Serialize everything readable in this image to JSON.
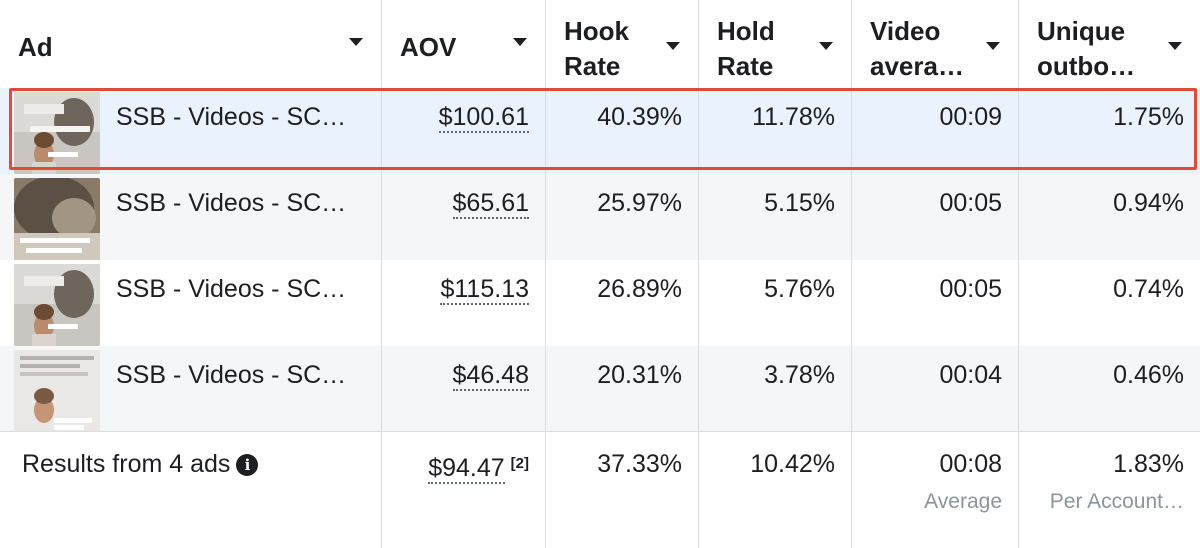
{
  "columns": {
    "ad": "Ad",
    "aov": "AOV",
    "hook_rate": "Hook Rate",
    "hold_rate": "Hold Rate",
    "video_avg": "Video avera…",
    "unique_outbound": "Unique outbo…"
  },
  "rows": [
    {
      "name": "SSB - Videos - SC…",
      "aov": "$100.61",
      "hook_rate": "40.39%",
      "hold_rate": "11.78%",
      "video_avg": "00:09",
      "unique_outbound": "1.75%"
    },
    {
      "name": "SSB - Videos - SC…",
      "aov": "$65.61",
      "hook_rate": "25.97%",
      "hold_rate": "5.15%",
      "video_avg": "00:05",
      "unique_outbound": "0.94%"
    },
    {
      "name": "SSB - Videos - SC…",
      "aov": "$115.13",
      "hook_rate": "26.89%",
      "hold_rate": "5.76%",
      "video_avg": "00:05",
      "unique_outbound": "0.74%"
    },
    {
      "name": "SSB - Videos - SC…",
      "aov": "$46.48",
      "hook_rate": "20.31%",
      "hold_rate": "3.78%",
      "video_avg": "00:04",
      "unique_outbound": "0.46%"
    }
  ],
  "results": {
    "label": "Results from 4 ads",
    "info_icon": "i",
    "aov": "$94.47",
    "aov_footnote": "[2]",
    "hook_rate": "37.33%",
    "hold_rate": "10.42%",
    "video_avg": "00:08",
    "video_avg_sub": "Average",
    "unique_outbound": "1.83%",
    "unique_outbound_sub": "Per Account…"
  },
  "icons": {
    "sort": "caret-down-icon",
    "info": "info-icon"
  },
  "colors": {
    "selected_row_bg": "#eaf2fe",
    "selected_outline": "#e04a3a",
    "alt_row_bg": "#f5f6f7"
  }
}
